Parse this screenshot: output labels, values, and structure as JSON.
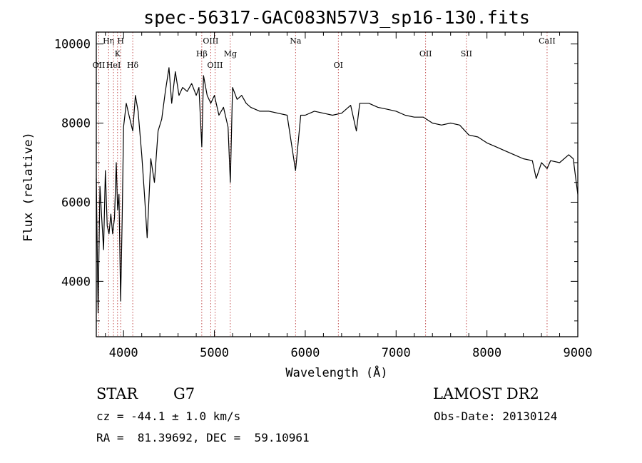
{
  "chart_data": {
    "type": "line",
    "title": "spec-56317-GAC083N57V3_sp16-130.fits",
    "xlabel": "Wavelength (Å)",
    "ylabel": "Flux (relative)",
    "xlim": [
      3700,
      9000
    ],
    "ylim": [
      2600,
      10300
    ],
    "xticks": [
      4000,
      5000,
      6000,
      7000,
      8000,
      9000
    ],
    "yticks": [
      4000,
      6000,
      8000,
      10000
    ],
    "grid": false,
    "series": [
      {
        "x": [
          3700,
          3720,
          3740,
          3760,
          3780,
          3800,
          3820,
          3840,
          3860,
          3880,
          3900,
          3920,
          3935,
          3950,
          3968,
          3985,
          4000,
          4030,
          4060,
          4101,
          4130,
          4160,
          4200,
          4230,
          4260,
          4300,
          4340,
          4380,
          4420,
          4460,
          4500,
          4530,
          4570,
          4610,
          4650,
          4700,
          4750,
          4800,
          4830,
          4861,
          4880,
          4920,
          4960,
          5000,
          5050,
          5100,
          5150,
          5175,
          5200,
          5250,
          5300,
          5350,
          5400,
          5500,
          5600,
          5700,
          5800,
          5893,
          5950,
          6000,
          6100,
          6200,
          6300,
          6400,
          6500,
          6563,
          6600,
          6700,
          6800,
          6900,
          7000,
          7100,
          7200,
          7300,
          7400,
          7500,
          7600,
          7700,
          7800,
          7900,
          8000,
          8100,
          8200,
          8300,
          8400,
          8500,
          8542,
          8600,
          8662,
          8700,
          8800,
          8900,
          8950,
          9000
        ],
        "y": [
          6600,
          3200,
          6400,
          5600,
          4800,
          6800,
          5400,
          5200,
          5700,
          5200,
          5600,
          7000,
          5800,
          6200,
          3500,
          5600,
          7900,
          8500,
          8200,
          7800,
          8700,
          8300,
          7200,
          6200,
          5100,
          7100,
          6500,
          7800,
          8100,
          8800,
          9400,
          8500,
          9300,
          8700,
          8900,
          8800,
          9000,
          8700,
          8900,
          7400,
          9200,
          8700,
          8500,
          8700,
          8200,
          8400,
          7900,
          6500,
          8900,
          8600,
          8700,
          8500,
          8400,
          8300,
          8300,
          8250,
          8200,
          6800,
          8200,
          8200,
          8300,
          8250,
          8200,
          8250,
          8450,
          7800,
          8500,
          8500,
          8400,
          8350,
          8300,
          8200,
          8150,
          8150,
          8000,
          7950,
          8000,
          7950,
          7700,
          7650,
          7500,
          7400,
          7300,
          7200,
          7100,
          7050,
          6600,
          7000,
          6850,
          7050,
          7000,
          7200,
          7100,
          6200
        ]
      }
    ],
    "lines": [
      {
        "label": "OII",
        "x": 3727,
        "row": 3
      },
      {
        "label": "Hη",
        "x": 3835,
        "row": 1
      },
      {
        "label": "HeI",
        "x": 3889,
        "row": 3
      },
      {
        "label": "K",
        "x": 3934,
        "row": 2
      },
      {
        "label": "H",
        "x": 3968,
        "row": 1
      },
      {
        "label": "Hδ",
        "x": 4101,
        "row": 3
      },
      {
        "label": "Hβ",
        "x": 4861,
        "row": 2
      },
      {
        "label": "OIII",
        "x": 4959,
        "row": 1
      },
      {
        "label": "OIII",
        "x": 5007,
        "row": 3
      },
      {
        "label": "Mg",
        "x": 5175,
        "row": 2
      },
      {
        "label": "Na",
        "x": 5893,
        "row": 1
      },
      {
        "label": "OI",
        "x": 6364,
        "row": 3
      },
      {
        "label": "OII",
        "x": 7325,
        "row": 2
      },
      {
        "label": "SII",
        "x": 7774,
        "row": 2
      },
      {
        "label": "CaII",
        "x": 8662,
        "row": 1
      }
    ]
  },
  "info": {
    "object_type": "STAR",
    "subclass": "G7",
    "survey": "LAMOST DR2",
    "velocity": "cz = -44.1 ± 1.0 km/s",
    "obs_date": "Obs-Date: 20130124",
    "coords": "RA =  81.39692, DEC =  59.10961"
  }
}
